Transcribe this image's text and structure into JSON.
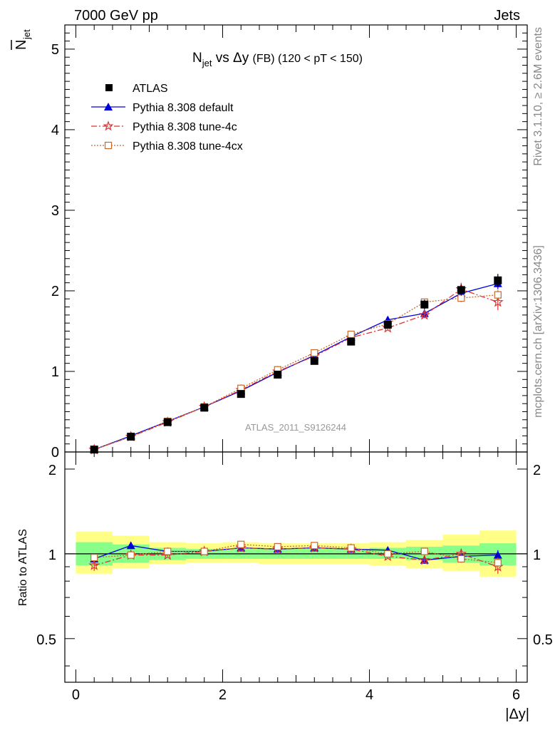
{
  "header": {
    "left": "7000 GeV pp",
    "right": "Jets"
  },
  "side_text": {
    "top": "Rivet 3.1.10, ≥ 2.6M events",
    "bottom": "mcplots.cern.ch [arXiv:1306.3436]"
  },
  "chart_data": [
    {
      "type": "scatter",
      "panel": "main",
      "title": {
        "main": "N",
        "sub": "jet",
        "middle": " vs Δy ",
        "tag": "(FB)",
        "range": " (120 < pT < 150)"
      },
      "ylabel": "N̄jet",
      "ylabel_main": "N",
      "ylabel_sub": "jet",
      "xlim": [
        -0.15,
        6.15
      ],
      "ylim": [
        0,
        5.3
      ],
      "yticks": [
        0,
        1,
        2,
        3,
        4,
        5
      ],
      "ytick_labels": [
        "0",
        "1",
        "2",
        "3",
        "4",
        "5"
      ],
      "watermark": "ATLAS_2011_S9126244",
      "x": [
        0.25,
        0.75,
        1.25,
        1.75,
        2.25,
        2.75,
        3.25,
        3.75,
        4.25,
        4.75,
        5.25,
        5.75
      ],
      "series": [
        {
          "name": "ATLAS",
          "color": "#000000",
          "marker": "square-filled",
          "line": "none",
          "values": [
            0.03,
            0.19,
            0.37,
            0.55,
            0.72,
            0.96,
            1.13,
            1.37,
            1.58,
            1.83,
            2.01,
            2.13
          ],
          "errors": [
            0.005,
            0.01,
            0.015,
            0.02,
            0.025,
            0.03,
            0.035,
            0.04,
            0.05,
            0.06,
            0.07,
            0.08
          ]
        },
        {
          "name": "Pythia 8.308 default",
          "color": "#0000dd",
          "marker": "triangle-filled",
          "line": "solid",
          "values": [
            0.03,
            0.2,
            0.38,
            0.56,
            0.76,
            0.99,
            1.2,
            1.43,
            1.64,
            1.72,
            1.97,
            2.09
          ],
          "errors": [
            0.003,
            0.005,
            0.008,
            0.01,
            0.012,
            0.015,
            0.02,
            0.025,
            0.03,
            0.04,
            0.05,
            0.07
          ]
        },
        {
          "name": "Pythia 8.308 tune-4c",
          "color": "#dd3333",
          "marker": "star-open",
          "line": "dashdot",
          "values": [
            0.03,
            0.19,
            0.37,
            0.56,
            0.77,
            1.0,
            1.19,
            1.42,
            1.54,
            1.7,
            2.02,
            1.86
          ],
          "errors": [
            0.003,
            0.005,
            0.008,
            0.01,
            0.012,
            0.015,
            0.02,
            0.025,
            0.03,
            0.04,
            0.08,
            0.1
          ]
        },
        {
          "name": "Pythia 8.308 tune-4cx",
          "color": "#c8692a",
          "marker": "square-open",
          "line": "dotted",
          "values": [
            0.03,
            0.19,
            0.38,
            0.56,
            0.79,
            1.02,
            1.23,
            1.46,
            1.59,
            1.86,
            1.91,
            1.95
          ],
          "errors": [
            0.003,
            0.005,
            0.008,
            0.01,
            0.012,
            0.015,
            0.02,
            0.025,
            0.03,
            0.04,
            0.05,
            0.06
          ]
        }
      ]
    },
    {
      "type": "scatter",
      "panel": "ratio",
      "ylabel": "Ratio to ATLAS",
      "xlabel": "|Δy|",
      "xlim": [
        -0.15,
        6.15
      ],
      "ylim": [
        0.35,
        2.3
      ],
      "yticks": [
        0.5,
        1,
        2
      ],
      "ytick_labels": [
        "0.5",
        "1",
        "2"
      ],
      "xticks": [
        0,
        2,
        4,
        6
      ],
      "xtick_labels": [
        "0",
        "2",
        "4",
        "6"
      ],
      "bands": {
        "bins": [
          [
            0,
            0.5
          ],
          [
            0.5,
            1.0
          ],
          [
            1.0,
            1.5
          ],
          [
            1.5,
            2.0
          ],
          [
            2.0,
            2.5
          ],
          [
            2.5,
            3.0
          ],
          [
            3.0,
            3.5
          ],
          [
            3.5,
            4.0
          ],
          [
            4.0,
            4.5
          ],
          [
            4.5,
            5.0
          ],
          [
            5.0,
            5.5
          ],
          [
            5.5,
            6.0
          ]
        ],
        "yellow": [
          [
            0.85,
            1.2
          ],
          [
            0.89,
            1.16
          ],
          [
            0.92,
            1.1
          ],
          [
            0.93,
            1.09
          ],
          [
            0.93,
            1.1
          ],
          [
            0.92,
            1.09
          ],
          [
            0.92,
            1.09
          ],
          [
            0.92,
            1.09
          ],
          [
            0.91,
            1.1
          ],
          [
            0.89,
            1.12
          ],
          [
            0.87,
            1.17
          ],
          [
            0.83,
            1.21
          ]
        ],
        "green": [
          [
            0.91,
            1.1
          ],
          [
            0.93,
            1.08
          ],
          [
            0.95,
            1.05
          ],
          [
            0.96,
            1.04
          ],
          [
            0.96,
            1.04
          ],
          [
            0.96,
            1.04
          ],
          [
            0.96,
            1.04
          ],
          [
            0.96,
            1.04
          ],
          [
            0.96,
            1.05
          ],
          [
            0.95,
            1.06
          ],
          [
            0.93,
            1.07
          ],
          [
            0.91,
            1.09
          ]
        ],
        "yellow_color": "#ffff88",
        "green_color": "#88ff88"
      },
      "series": [
        {
          "name": "Pythia 8.308 default",
          "color": "#0000dd",
          "marker": "triangle-filled",
          "line": "solid",
          "values": [
            0.96,
            1.07,
            1.02,
            1.02,
            1.05,
            1.04,
            1.05,
            1.04,
            1.03,
            0.95,
            0.98,
            0.99
          ],
          "errors": [
            0.03,
            0.02,
            0.01,
            0.01,
            0.01,
            0.01,
            0.01,
            0.01,
            0.01,
            0.02,
            0.03,
            0.04
          ]
        },
        {
          "name": "Pythia 8.308 tune-4c",
          "color": "#dd3333",
          "marker": "star-open",
          "line": "dashdot",
          "values": [
            0.91,
            0.99,
            0.99,
            1.02,
            1.05,
            1.04,
            1.05,
            1.04,
            0.98,
            0.95,
            1.0,
            0.9
          ],
          "errors": [
            0.04,
            0.02,
            0.01,
            0.01,
            0.01,
            0.01,
            0.01,
            0.01,
            0.02,
            0.02,
            0.04,
            0.05
          ]
        },
        {
          "name": "Pythia 8.308 tune-4cx",
          "color": "#c8692a",
          "marker": "square-open",
          "line": "dotted",
          "values": [
            0.97,
            0.99,
            1.02,
            1.02,
            1.08,
            1.06,
            1.07,
            1.05,
            1.0,
            1.02,
            0.96,
            0.93
          ],
          "errors": [
            0.03,
            0.02,
            0.01,
            0.01,
            0.01,
            0.01,
            0.01,
            0.01,
            0.02,
            0.02,
            0.03,
            0.04
          ]
        }
      ]
    }
  ]
}
